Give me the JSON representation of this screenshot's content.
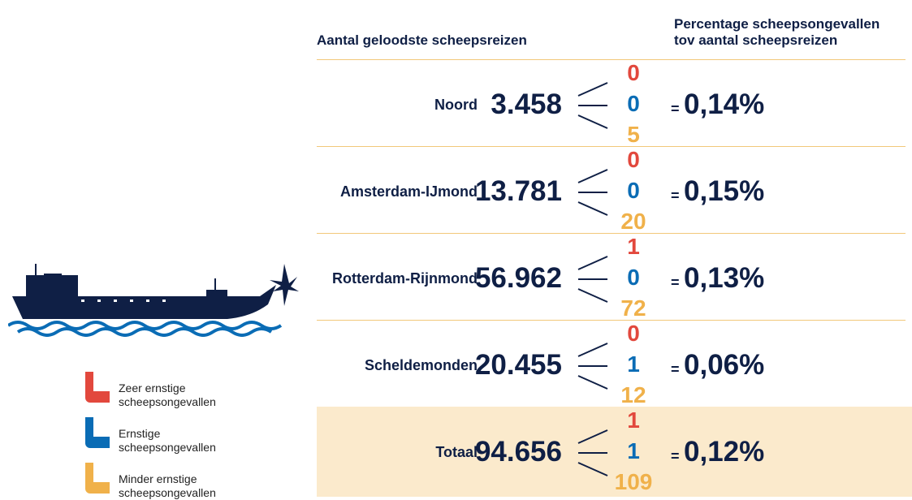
{
  "header": {
    "trips_title": "Aantal geloodste scheepsreizen",
    "percentage_title": [
      "Percentage scheepsongevallen",
      "tov aantal scheepsreizen"
    ]
  },
  "equals_sign": "=",
  "rows": [
    {
      "name": "Noord",
      "trips": "3.458",
      "counts": [
        0,
        0,
        5
      ],
      "percentage": "0,14%"
    },
    {
      "name": "Amsterdam-IJmond",
      "trips": "13.781",
      "counts": [
        0,
        0,
        20
      ],
      "percentage": "0,15%"
    },
    {
      "name": "Rotterdam-Rijnmond",
      "trips": "56.962",
      "counts": [
        1,
        0,
        72
      ],
      "percentage": "0,13%"
    },
    {
      "name": "Scheldemonden",
      "trips": "20.455",
      "counts": [
        0,
        1,
        12
      ],
      "percentage": "0,06%"
    },
    {
      "name": "Totaal",
      "trips": "94.656",
      "counts": [
        1,
        1,
        109
      ],
      "percentage": "0,12%",
      "highlight": true
    }
  ],
  "legend": [
    {
      "label": [
        "Zeer ernstige",
        "scheepsongevallen"
      ],
      "color": "#e2483d"
    },
    {
      "label": [
        "Ernstige",
        "scheepsongevallen"
      ],
      "color": "#0a6cb5"
    },
    {
      "label": [
        "Minder ernstige",
        "scheepsongevallen"
      ],
      "color": "#f0b14a"
    }
  ]
}
